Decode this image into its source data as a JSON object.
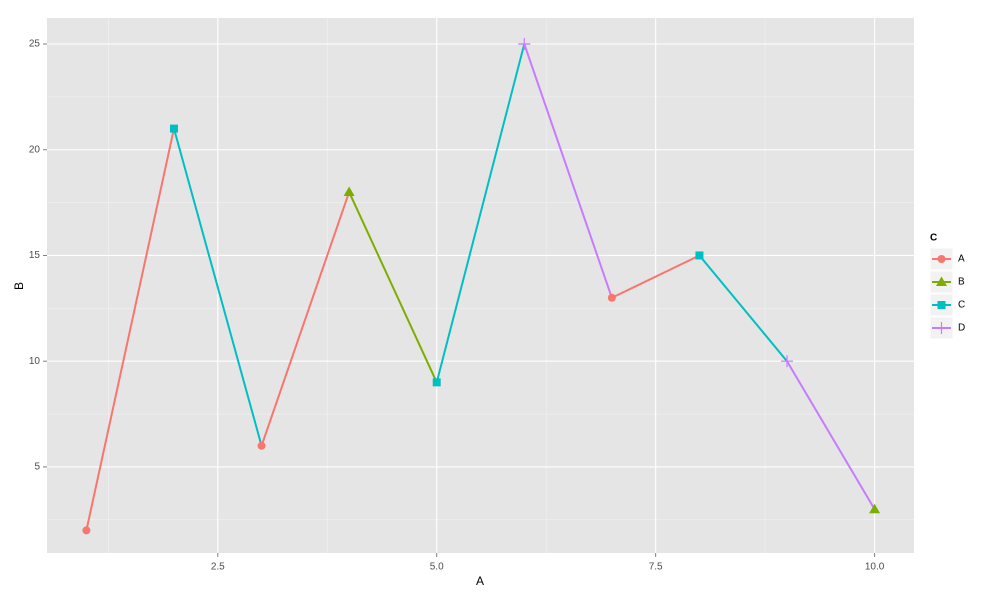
{
  "chart_data": {
    "type": "line",
    "x_label": "A",
    "y_label": "B",
    "x": [
      1,
      2,
      3,
      4,
      5,
      6,
      7,
      8,
      9,
      10
    ],
    "y": [
      2,
      21,
      6,
      18,
      9,
      25,
      13,
      15,
      10,
      3
    ],
    "groups": [
      "A",
      "C",
      "A",
      "B",
      "C",
      "D",
      "A",
      "C",
      "D",
      "B"
    ],
    "xlim": [
      0.55,
      10.45
    ],
    "ylim": [
      0.93,
      26.23
    ],
    "xticks": [
      {
        "value": 2.5,
        "label": "2.5"
      },
      {
        "value": 5,
        "label": "5.0"
      },
      {
        "value": 7.5,
        "label": "7.5"
      },
      {
        "value": 10,
        "label": "10.0"
      }
    ],
    "yticks": [
      5,
      10,
      15,
      20,
      25
    ],
    "xminor": [
      1.25,
      3.75,
      6.25,
      8.75
    ],
    "yminor": [
      2.5,
      7.5,
      12.5,
      17.5,
      22.5
    ],
    "grid": true,
    "legend": {
      "title": "C",
      "position": "right",
      "entries": [
        {
          "name": "A",
          "color": "#F8766D",
          "shape": "circle"
        },
        {
          "name": "B",
          "color": "#7CAE00",
          "shape": "triangle"
        },
        {
          "name": "C",
          "color": "#00BFC4",
          "shape": "square"
        },
        {
          "name": "D",
          "color": "#C77CFF",
          "shape": "plus"
        }
      ]
    }
  }
}
